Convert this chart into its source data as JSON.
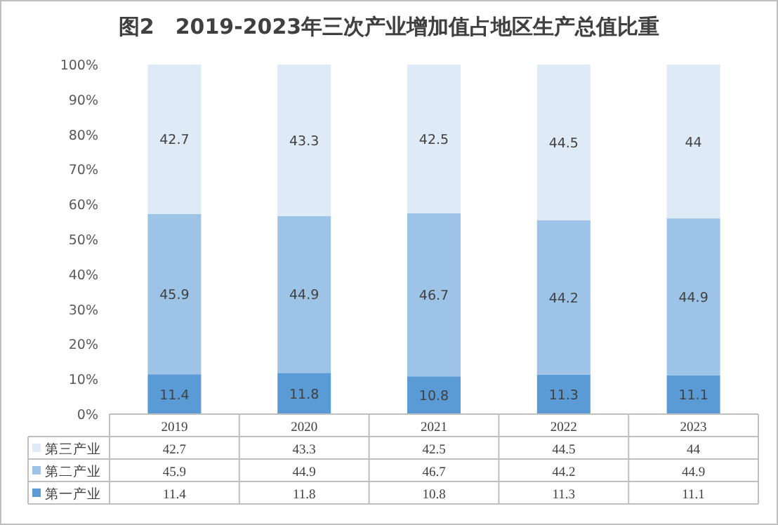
{
  "chart_data": {
    "type": "bar",
    "title": "图2　2019-2023年三次产业增加值占地区生产总值比重",
    "categories": [
      "2019",
      "2020",
      "2021",
      "2022",
      "2023"
    ],
    "stacked": true,
    "data_labels": true,
    "legend": "bottom left",
    "ylim": [
      0,
      100
    ],
    "yticks": [
      {
        "value": 0,
        "label": "0%"
      },
      {
        "value": 10,
        "label": "10%"
      },
      {
        "value": 20,
        "label": "20%"
      },
      {
        "value": 30,
        "label": "30%"
      },
      {
        "value": 40,
        "label": "40%"
      },
      {
        "value": 50,
        "label": "50%"
      },
      {
        "value": 60,
        "label": "60%"
      },
      {
        "value": 70,
        "label": "70%"
      },
      {
        "value": 80,
        "label": "80%"
      },
      {
        "value": 90,
        "label": "90%"
      },
      {
        "value": 100,
        "label": "100%"
      }
    ],
    "series": [
      {
        "name": "第一产业",
        "color": "#5b9bd5",
        "values": [
          11.4,
          11.8,
          10.8,
          11.3,
          11.1
        ]
      },
      {
        "name": "第二产业",
        "color": "#9dc3e6",
        "values": [
          45.9,
          44.9,
          46.7,
          44.2,
          44.9
        ]
      },
      {
        "name": "第三产业",
        "color": "#deebf7",
        "values": [
          42.7,
          43.3,
          42.5,
          44.5,
          44
        ]
      }
    ],
    "annotations": [
      "42.7",
      "43.3",
      "42.5",
      "44.5",
      "44",
      "45.9",
      "44.9",
      "46.7",
      "44.2",
      "44.9",
      "11.4",
      "11.8",
      "10.8",
      "11.3",
      "11.1"
    ]
  }
}
